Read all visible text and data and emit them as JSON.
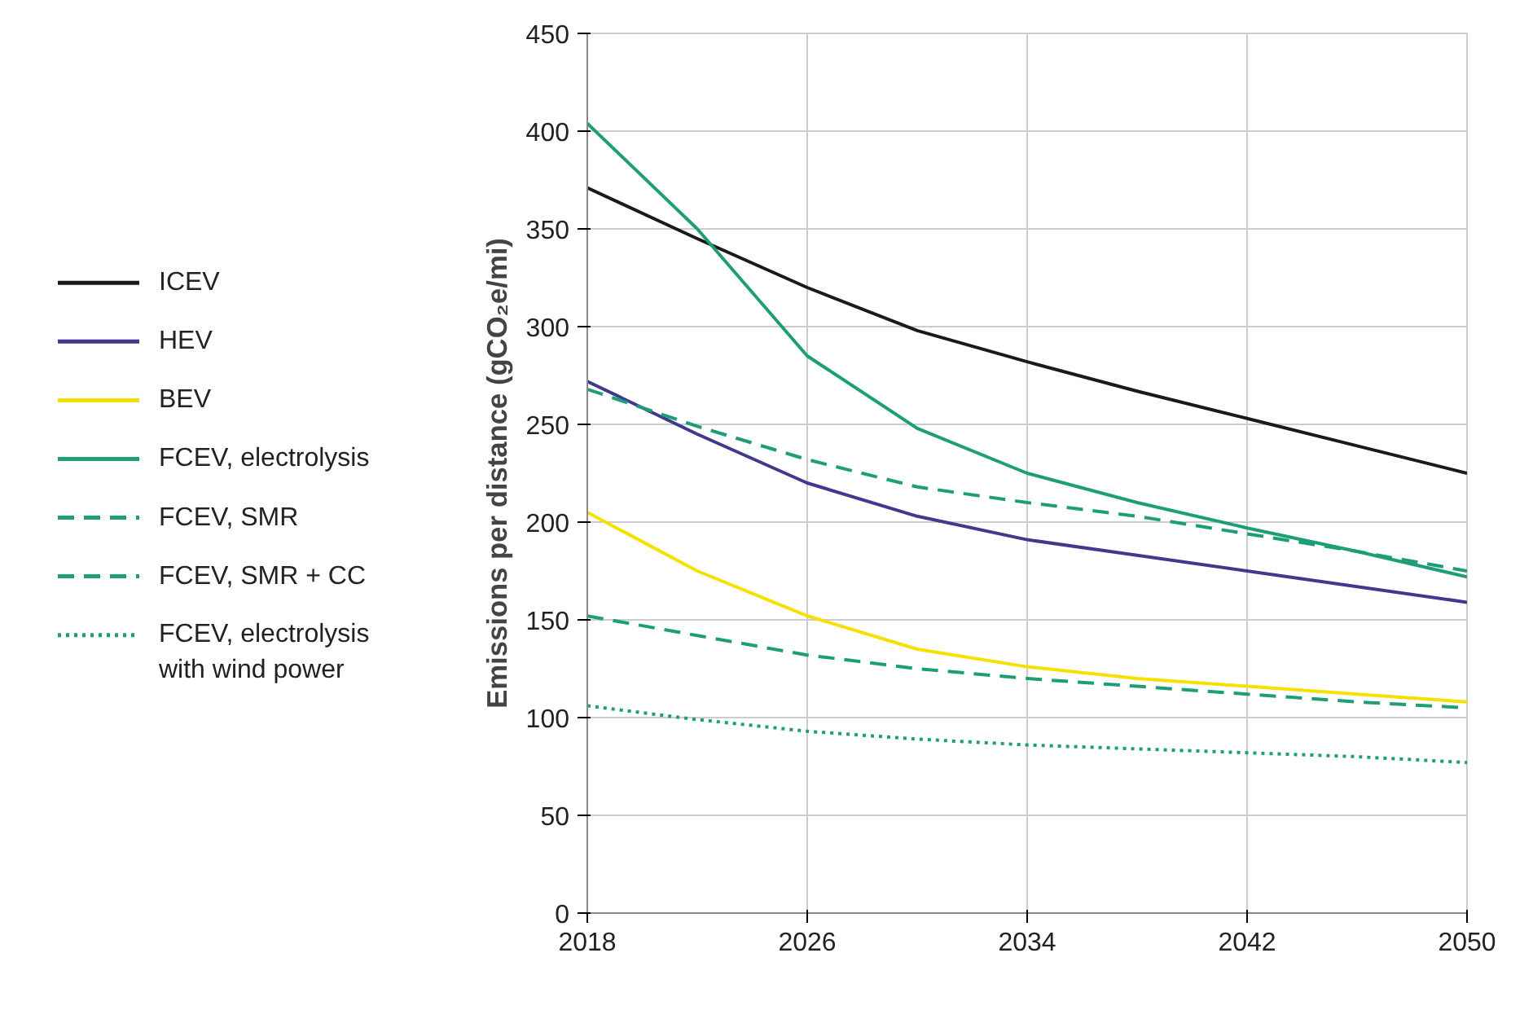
{
  "chart_data": {
    "type": "line",
    "ylabel": "Emissions per distance (gCO₂e/mi)",
    "x": [
      2018,
      2022,
      2026,
      2030,
      2034,
      2038,
      2042,
      2046,
      2050
    ],
    "xlim": [
      2018,
      2050
    ],
    "xticks": [
      2018,
      2026,
      2034,
      2042,
      2050
    ],
    "ylim": [
      0,
      450
    ],
    "yticks": [
      0,
      50,
      100,
      150,
      200,
      250,
      300,
      350,
      400,
      450
    ],
    "grid": true,
    "legend": "left",
    "marker": "none",
    "series": [
      {
        "name": "ICEV",
        "color": "#1a1a1a",
        "line_style": "solid",
        "values": [
          371,
          345,
          320,
          298,
          282,
          267,
          253,
          239,
          225
        ]
      },
      {
        "name": "HEV",
        "color": "#3f3a8c",
        "line_style": "solid",
        "values": [
          272,
          245,
          220,
          203,
          191,
          183,
          175,
          167,
          159
        ]
      },
      {
        "name": "BEV",
        "color": "#f5e000",
        "line_style": "solid",
        "values": [
          205,
          175,
          152,
          135,
          126,
          120,
          116,
          112,
          108
        ]
      },
      {
        "name": "FCEV, electrolysis",
        "color": "#1e9e78",
        "line_style": "solid",
        "values": [
          404,
          350,
          285,
          248,
          225,
          210,
          197,
          185,
          172
        ]
      },
      {
        "name": "FCEV, SMR",
        "color": "#1e9e78",
        "line_style": "dashed",
        "values": [
          268,
          249,
          232,
          218,
          210,
          203,
          194,
          185,
          175
        ]
      },
      {
        "name": "FCEV, SMR + CC",
        "color": "#1e9e78",
        "line_style": "dashed",
        "values": [
          152,
          142,
          132,
          125,
          120,
          116,
          112,
          108,
          105
        ]
      },
      {
        "name": "FCEV, electrolysis\nwith wind power",
        "color": "#1e9e78",
        "line_style": "dotted",
        "values": [
          106,
          99,
          93,
          89,
          86,
          84,
          82,
          80,
          77
        ]
      }
    ]
  }
}
